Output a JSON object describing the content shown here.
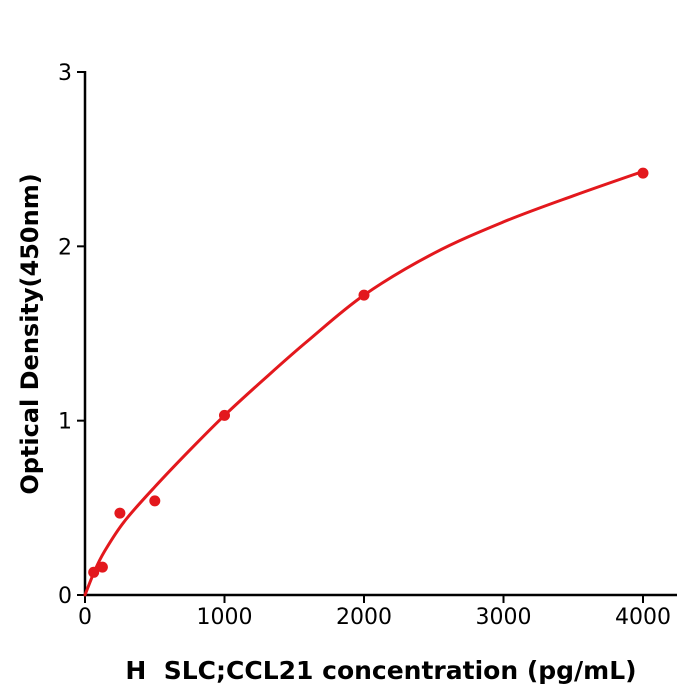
{
  "figure": {
    "background": "#ffffff"
  },
  "colors": {
    "curve": "#e3181d",
    "point": "#e3181d",
    "axis": "#000000",
    "tick_label": "#000000"
  },
  "chart_data": {
    "type": "scatter",
    "title": "",
    "xlabel": "H  SLC;CCL21 concentration (pg/mL)",
    "ylabel": "Optical Density(450nm)",
    "xlim": [
      0,
      4250
    ],
    "ylim": [
      0,
      3
    ],
    "x_ticks": [
      0,
      1000,
      2000,
      3000,
      4000
    ],
    "y_ticks": [
      0,
      1,
      2,
      3
    ],
    "grid": false,
    "legend": "none",
    "series": [
      {
        "name": "standard-points",
        "type": "scatter",
        "x": [
          62.5,
          125,
          250,
          500,
          1000,
          2000,
          4000
        ],
        "y": [
          0.13,
          0.16,
          0.47,
          0.54,
          1.03,
          1.72,
          2.42
        ]
      },
      {
        "name": "fit-curve",
        "type": "line",
        "x": [
          0,
          70,
          140,
          280,
          500,
          750,
          1000,
          1300,
          1600,
          2000,
          2500,
          3000,
          3500,
          4000
        ],
        "y": [
          0,
          0.14,
          0.25,
          0.42,
          0.62,
          0.83,
          1.03,
          1.25,
          1.46,
          1.72,
          1.96,
          2.14,
          2.29,
          2.43
        ]
      }
    ]
  }
}
